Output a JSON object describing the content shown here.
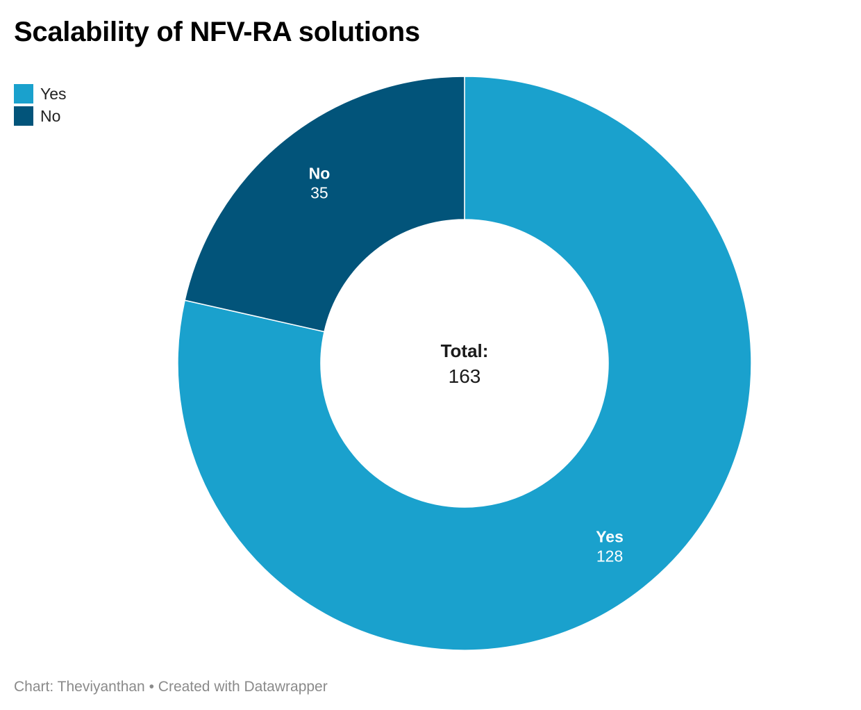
{
  "title": "Scalability of NFV-RA solutions",
  "footer": {
    "source_prefix": "Chart: ",
    "source": "Theviyanthan",
    "separator": " • ",
    "credit": "Created with Datawrapper"
  },
  "chart_data": {
    "type": "pie",
    "style": "donut",
    "title": "Scalability of NFV-RA solutions",
    "legend": {
      "position": "top-left",
      "entries": [
        "Yes",
        "No"
      ]
    },
    "slices": [
      {
        "label": "Yes",
        "value": 128,
        "color": "#1aa1cd"
      },
      {
        "label": "No",
        "value": 35,
        "color": "#02547a"
      }
    ],
    "center": {
      "label": "Total:",
      "value": "163"
    }
  }
}
